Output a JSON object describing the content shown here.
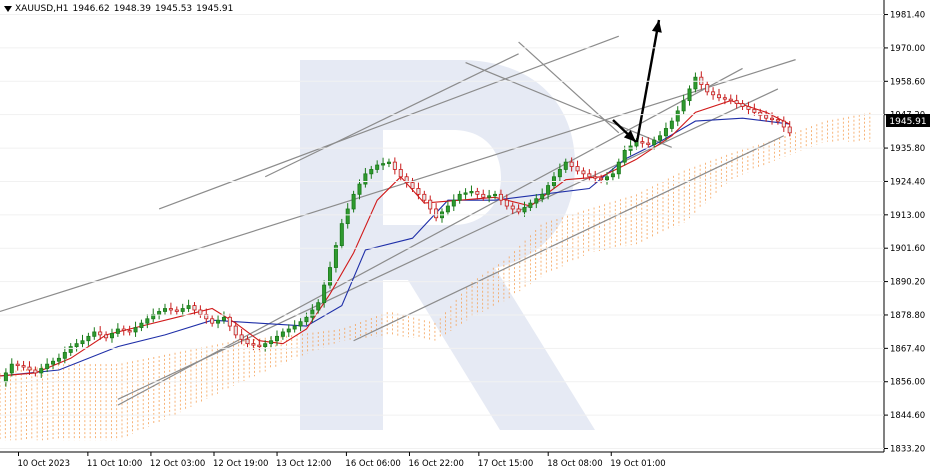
{
  "header": {
    "symbol": "XAUUSD,H1",
    "open": "1946.62",
    "high": "1948.39",
    "low": "1945.53",
    "close": "1945.91"
  },
  "current_price_label": "1945.91",
  "chart_data": {
    "type": "candlestick",
    "title": "",
    "y_axis_labels": [
      "1981.40",
      "1970.00",
      "1958.60",
      "1947.20",
      "1935.80",
      "1924.40",
      "1913.00",
      "1901.60",
      "1890.20",
      "1878.80",
      "1867.40",
      "1856.00",
      "1844.60",
      "1833.20"
    ],
    "y_range": [
      1832.0,
      1985.0
    ],
    "x_axis_labels": [
      "10 Oct 2023",
      "11 Oct 10:00",
      "12 Oct 03:00",
      "12 Oct 19:00",
      "13 Oct 12:00",
      "16 Oct 06:00",
      "16 Oct 22:00",
      "17 Oct 15:00",
      "18 Oct 08:00",
      "19 Oct 01:00"
    ],
    "close_path": [
      [
        0,
        1856
      ],
      [
        2,
        1862
      ],
      [
        4,
        1861
      ],
      [
        6,
        1859
      ],
      [
        8,
        1862
      ],
      [
        10,
        1864
      ],
      [
        12,
        1868
      ],
      [
        14,
        1870
      ],
      [
        16,
        1873
      ],
      [
        18,
        1871
      ],
      [
        20,
        1874
      ],
      [
        22,
        1873
      ],
      [
        24,
        1876
      ],
      [
        26,
        1879
      ],
      [
        28,
        1881
      ],
      [
        30,
        1880
      ],
      [
        32,
        1882
      ],
      [
        34,
        1879
      ],
      [
        36,
        1876
      ],
      [
        38,
        1878
      ],
      [
        40,
        1872
      ],
      [
        42,
        1869
      ],
      [
        44,
        1868
      ],
      [
        46,
        1870
      ],
      [
        48,
        1873
      ],
      [
        50,
        1875
      ],
      [
        52,
        1878
      ],
      [
        54,
        1883
      ],
      [
        56,
        1895
      ],
      [
        58,
        1910
      ],
      [
        60,
        1920
      ],
      [
        62,
        1927
      ],
      [
        64,
        1930
      ],
      [
        66,
        1931
      ],
      [
        68,
        1926
      ],
      [
        70,
        1922
      ],
      [
        72,
        1918
      ],
      [
        74,
        1912
      ],
      [
        76,
        1916
      ],
      [
        78,
        1920
      ],
      [
        80,
        1921
      ],
      [
        82,
        1919
      ],
      [
        84,
        1920
      ],
      [
        86,
        1916
      ],
      [
        88,
        1914
      ],
      [
        90,
        1917
      ],
      [
        92,
        1920
      ],
      [
        94,
        1926
      ],
      [
        96,
        1931
      ],
      [
        98,
        1928
      ],
      [
        100,
        1926
      ],
      [
        102,
        1925
      ],
      [
        104,
        1927
      ],
      [
        106,
        1935
      ],
      [
        108,
        1938
      ],
      [
        110,
        1937
      ],
      [
        112,
        1940
      ],
      [
        114,
        1945
      ],
      [
        116,
        1952
      ],
      [
        118,
        1960
      ],
      [
        120,
        1955
      ],
      [
        122,
        1953
      ],
      [
        124,
        1952
      ],
      [
        126,
        1950
      ],
      [
        128,
        1948
      ],
      [
        130,
        1946
      ],
      [
        132,
        1945
      ],
      [
        134,
        1941
      ]
    ],
    "tenkan_path": [
      [
        0,
        1858
      ],
      [
        6,
        1859
      ],
      [
        12,
        1864
      ],
      [
        18,
        1872
      ],
      [
        24,
        1875
      ],
      [
        30,
        1878
      ],
      [
        36,
        1881
      ],
      [
        40,
        1876
      ],
      [
        44,
        1870
      ],
      [
        48,
        1869
      ],
      [
        52,
        1874
      ],
      [
        56,
        1886
      ],
      [
        60,
        1900
      ],
      [
        64,
        1918
      ],
      [
        68,
        1926
      ],
      [
        72,
        1917
      ],
      [
        78,
        1918
      ],
      [
        84,
        1919
      ],
      [
        90,
        1916
      ],
      [
        96,
        1925
      ],
      [
        102,
        1926
      ],
      [
        108,
        1932
      ],
      [
        114,
        1940
      ],
      [
        118,
        1948
      ],
      [
        124,
        1952
      ],
      [
        130,
        1948
      ],
      [
        134,
        1944
      ]
    ],
    "kijun_path": [
      [
        0,
        1858
      ],
      [
        10,
        1860
      ],
      [
        20,
        1868
      ],
      [
        28,
        1872
      ],
      [
        36,
        1877
      ],
      [
        44,
        1876
      ],
      [
        52,
        1875
      ],
      [
        58,
        1882
      ],
      [
        62,
        1901
      ],
      [
        70,
        1905
      ],
      [
        76,
        1918
      ],
      [
        84,
        1918
      ],
      [
        92,
        1920
      ],
      [
        100,
        1922
      ],
      [
        106,
        1932
      ],
      [
        112,
        1938
      ],
      [
        118,
        1945
      ],
      [
        126,
        1946
      ],
      [
        130,
        1945
      ],
      [
        134,
        1944
      ]
    ],
    "cloud_top": [
      [
        0,
        1859
      ],
      [
        10,
        1862
      ],
      [
        20,
        1862
      ],
      [
        30,
        1866
      ],
      [
        40,
        1870
      ],
      [
        50,
        1872
      ],
      [
        58,
        1874
      ],
      [
        66,
        1880
      ],
      [
        74,
        1876
      ],
      [
        80,
        1890
      ],
      [
        86,
        1898
      ],
      [
        92,
        1910
      ],
      [
        100,
        1915
      ],
      [
        108,
        1920
      ],
      [
        116,
        1928
      ],
      [
        124,
        1934
      ],
      [
        132,
        1939
      ],
      [
        140,
        1945
      ],
      [
        148,
        1948
      ]
    ],
    "cloud_bottom": [
      [
        0,
        1836
      ],
      [
        10,
        1836
      ],
      [
        20,
        1836
      ],
      [
        30,
        1845
      ],
      [
        40,
        1855
      ],
      [
        50,
        1864
      ],
      [
        58,
        1870
      ],
      [
        66,
        1872
      ],
      [
        74,
        1870
      ],
      [
        80,
        1878
      ],
      [
        86,
        1884
      ],
      [
        92,
        1892
      ],
      [
        100,
        1900
      ],
      [
        108,
        1903
      ],
      [
        116,
        1910
      ],
      [
        124,
        1925
      ],
      [
        132,
        1932
      ],
      [
        140,
        1938
      ],
      [
        148,
        1938
      ]
    ]
  }
}
